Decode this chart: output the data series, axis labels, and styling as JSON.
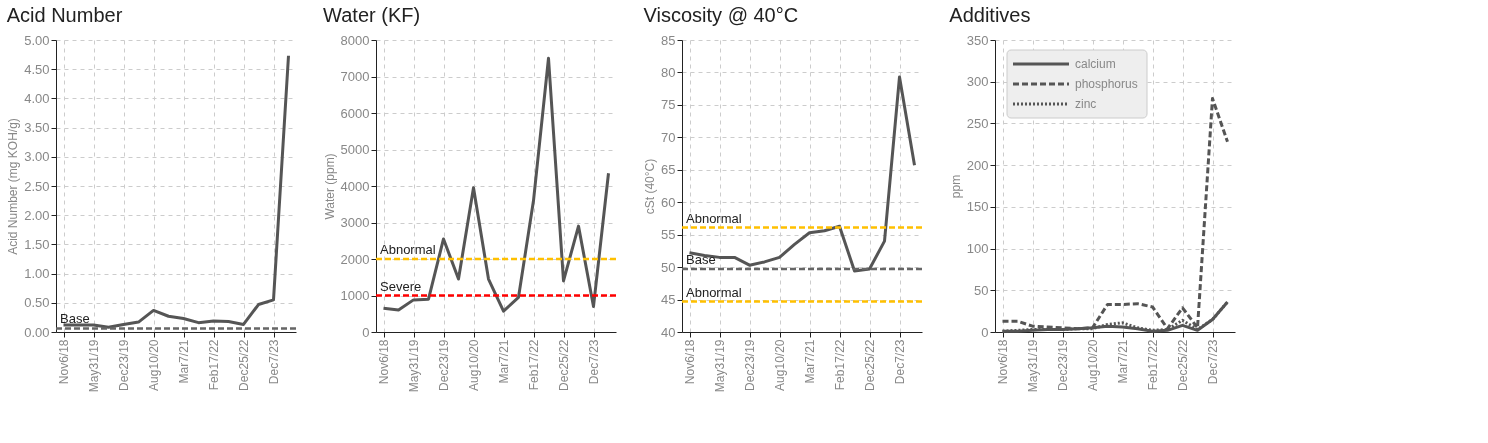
{
  "chart_data": [
    {
      "type": "line",
      "title": "Acid Number",
      "ylabel": "Acid Number (mg KOH/g)",
      "categories": [
        "Nov6/18",
        null,
        "May31/19",
        null,
        "Dec23/19",
        null,
        "Aug10/20",
        null,
        "Mar7/21",
        null,
        "Feb17/22",
        null,
        "Dec25/22",
        null,
        "Dec7/23",
        null
      ],
      "series": [
        {
          "color": "#555555",
          "values": [
            0.12,
            0.12,
            0.12,
            0.08,
            0.13,
            0.17,
            0.37,
            0.27,
            0.23,
            0.16,
            0.19,
            0.18,
            0.13,
            0.47,
            0.55,
            4.73
          ]
        }
      ],
      "ylim": [
        0,
        5
      ],
      "yticks": [
        {
          "value": 0,
          "label": "0.00"
        },
        {
          "value": 0.5,
          "label": "0.50"
        },
        {
          "value": 1,
          "label": "1.00"
        },
        {
          "value": 1.5,
          "label": "1.50"
        },
        {
          "value": 2,
          "label": "2.00"
        },
        {
          "value": 2.5,
          "label": "2.50"
        },
        {
          "value": 3,
          "label": "3.00"
        },
        {
          "value": 3.5,
          "label": "3.50"
        },
        {
          "value": 4,
          "label": "4.00"
        },
        {
          "value": 4.5,
          "label": "4.50"
        },
        {
          "value": 5,
          "label": "5.00"
        }
      ],
      "ref_lines": [
        {
          "axis": "y",
          "value": 0.06,
          "label": "Base",
          "color": "#666666",
          "line_style": "dashed"
        }
      ],
      "grid": true,
      "line_style": "solid"
    },
    {
      "type": "line",
      "title": "Water (KF)",
      "ylabel": "Water (ppm)",
      "categories": [
        "Nov6/18",
        null,
        "May31/19",
        null,
        "Dec23/19",
        null,
        "Aug10/20",
        null,
        "Mar7/21",
        null,
        "Feb17/22",
        null,
        "Dec25/22",
        null,
        "Dec7/23",
        null
      ],
      "series": [
        {
          "color": "#555555",
          "values": [
            650,
            600,
            880,
            900,
            2550,
            1450,
            3950,
            1450,
            570,
            950,
            3600,
            7500,
            1400,
            2900,
            700,
            4350
          ]
        }
      ],
      "ylim": [
        0,
        8000
      ],
      "yticks": [
        {
          "value": 0,
          "label": "0"
        },
        {
          "value": 1000,
          "label": "1000"
        },
        {
          "value": 2000,
          "label": "2000"
        },
        {
          "value": 3000,
          "label": "3000"
        },
        {
          "value": 4000,
          "label": "4000"
        },
        {
          "value": 5000,
          "label": "5000"
        },
        {
          "value": 6000,
          "label": "6000"
        },
        {
          "value": 7000,
          "label": "7000"
        },
        {
          "value": 8000,
          "label": "8000"
        }
      ],
      "ref_lines": [
        {
          "axis": "y",
          "value": 2000,
          "label": "Abnormal",
          "color": "#ffc000",
          "line_style": "dashed"
        },
        {
          "axis": "y",
          "value": 1000,
          "label": "Severe",
          "color": "#ff0000",
          "line_style": "dashed"
        }
      ],
      "grid": true,
      "line_style": "solid"
    },
    {
      "type": "line",
      "title": "Viscosity @ 40°C",
      "ylabel": "cSt (40°C)",
      "categories": [
        "Nov6/18",
        null,
        "May31/19",
        null,
        "Dec23/19",
        null,
        "Aug10/20",
        null,
        "Mar7/21",
        null,
        "Feb17/22",
        null,
        "Dec25/22",
        null,
        "Dec7/23",
        null
      ],
      "series": [
        {
          "color": "#555555",
          "values": [
            52.2,
            51.8,
            51.5,
            51.5,
            50.3,
            50.8,
            51.5,
            53.5,
            55.3,
            55.6,
            56.3,
            49.4,
            49.7,
            54.0,
            79.3,
            65.7
          ]
        }
      ],
      "ylim": [
        40,
        85
      ],
      "yticks": [
        40,
        45,
        50,
        55,
        60,
        65,
        70,
        75,
        80,
        85
      ],
      "ref_lines": [
        {
          "axis": "y",
          "value": 56.1,
          "label": "Abnormal",
          "color": "#ffc000",
          "line_style": "dashed"
        },
        {
          "axis": "y",
          "value": 49.7,
          "label": "Base",
          "color": "#666666",
          "line_style": "dashed"
        },
        {
          "axis": "y",
          "value": 44.7,
          "label": "Abnormal",
          "color": "#ffc000",
          "line_style": "dashed"
        }
      ],
      "grid": true,
      "line_style": "solid"
    },
    {
      "type": "line",
      "title": "Additives",
      "ylabel": "ppm",
      "categories": [
        "Nov6/18",
        null,
        "May31/19",
        null,
        "Dec23/19",
        null,
        "Aug10/20",
        null,
        "Mar7/21",
        null,
        "Feb17/22",
        null,
        "Dec25/22",
        null,
        "Dec7/23",
        null
      ],
      "series": [
        {
          "name": "calcium",
          "color": "#555555",
          "line_style": "solid",
          "values": [
            1,
            1,
            2,
            3,
            3,
            4,
            5,
            7,
            6,
            4,
            1,
            2,
            8,
            2,
            15,
            36
          ]
        },
        {
          "name": "phosphorus",
          "color": "#555555",
          "line_style": "dashed",
          "values": [
            13,
            13,
            7,
            6,
            5,
            4,
            5,
            33,
            33,
            34,
            30,
            4,
            29,
            5,
            280,
            228
          ]
        },
        {
          "name": "zinc",
          "color": "#555555",
          "line_style": "dotted",
          "values": [
            1,
            2,
            3,
            3,
            3,
            4,
            4,
            9,
            11,
            5,
            2,
            3,
            14,
            3,
            15,
            36
          ]
        }
      ],
      "ylim": [
        0,
        350
      ],
      "yticks": [
        0,
        50,
        100,
        150,
        200,
        250,
        300,
        350
      ],
      "grid": true,
      "legend": "top left"
    }
  ]
}
